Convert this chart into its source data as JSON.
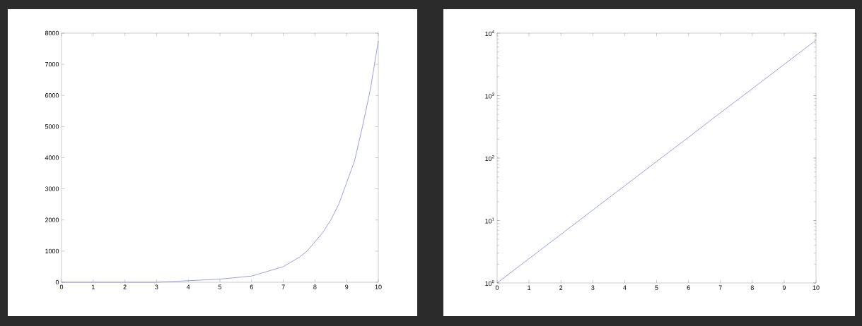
{
  "chart_data": [
    {
      "type": "line",
      "x": [
        0,
        1,
        2,
        3,
        4,
        5,
        6,
        7,
        7.5,
        7.75,
        8,
        8.25,
        8.5,
        8.75,
        9,
        9.25,
        9.5,
        9.75,
        10
      ],
      "series": [
        {
          "color": "#5a5ad2",
          "values": [
            0,
            0,
            0,
            0,
            50,
            100,
            200,
            500,
            800,
            1000,
            1300,
            1600,
            2000,
            2500,
            3200,
            3900,
            5000,
            6200,
            7750
          ]
        }
      ],
      "xlim": [
        0,
        10
      ],
      "ylim": [
        0,
        8000
      ],
      "xticks": [
        0,
        1,
        2,
        3,
        4,
        5,
        6,
        7,
        8,
        9,
        10
      ],
      "yticks": [
        0,
        1000,
        2000,
        3000,
        4000,
        5000,
        6000,
        7000,
        8000
      ]
    },
    {
      "type": "line",
      "log": "y",
      "x": [
        0,
        1,
        2,
        3,
        4,
        5,
        6,
        7,
        8,
        9,
        10
      ],
      "series": [
        {
          "color": "#5a5ad2",
          "values": [
            1,
            2.45,
            6,
            14.7,
            36,
            88,
            215,
            530,
            1290,
            3160,
            7750
          ]
        }
      ],
      "xlim": [
        0,
        10
      ],
      "ylim": [
        1,
        10000
      ],
      "xticks": [
        0,
        1,
        2,
        3,
        4,
        5,
        6,
        7,
        8,
        9,
        10
      ],
      "yticks": [
        {
          "value": 1,
          "label": "10$^{0}$"
        },
        {
          "value": 10,
          "label": "10$^{1}$"
        },
        {
          "value": 100,
          "label": "10$^{2}$"
        },
        {
          "value": 1000,
          "label": "10$^{3}$"
        },
        {
          "value": 10000,
          "label": "10$^{4}$"
        }
      ]
    }
  ]
}
